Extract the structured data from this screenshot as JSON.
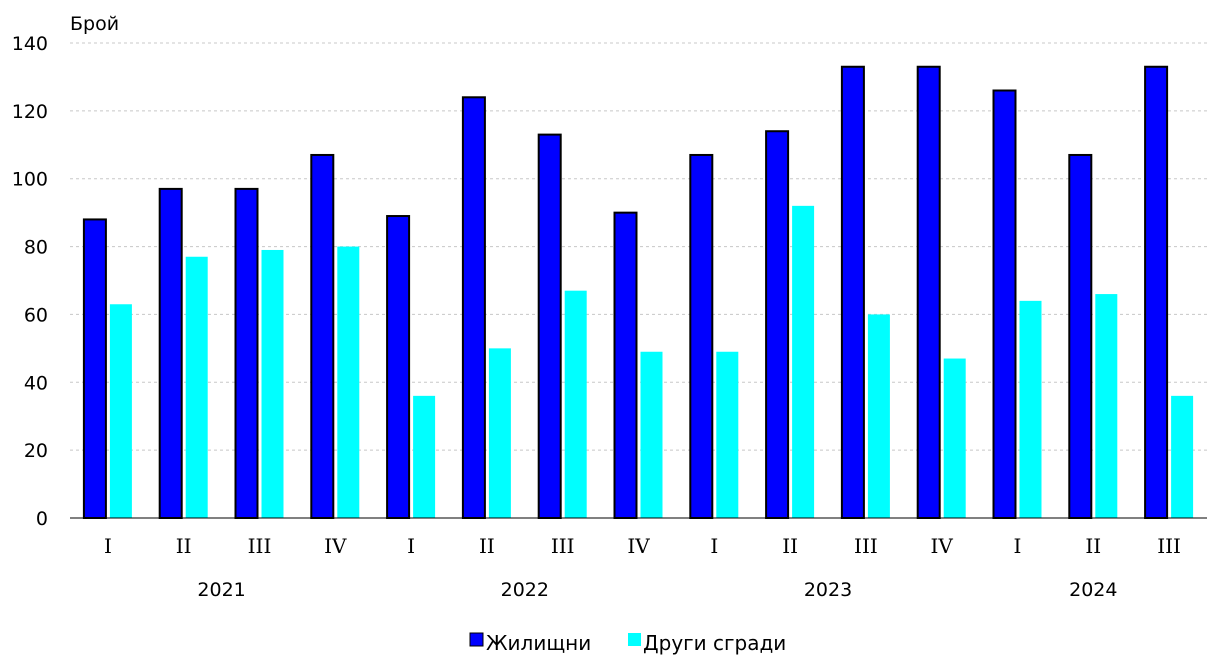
{
  "chart_data": {
    "type": "bar",
    "ylabel": "Брой",
    "ylim": [
      0,
      140
    ],
    "yticks": [
      "0",
      "20",
      "40",
      "60",
      "80",
      "100",
      "120",
      "140"
    ],
    "grid": true,
    "legend_position": "bottom",
    "categories": [
      "I",
      "II",
      "III",
      "IV",
      "I",
      "II",
      "III",
      "IV",
      "I",
      "II",
      "III",
      "IV",
      "I",
      "II",
      "III"
    ],
    "years": [
      {
        "label": "2021",
        "quarters": 4
      },
      {
        "label": "2022",
        "quarters": 4
      },
      {
        "label": "2023",
        "quarters": 4
      },
      {
        "label": "2024",
        "quarters": 3
      }
    ],
    "series": [
      {
        "name": "Жилищни",
        "color": "#0000ff",
        "values": [
          88,
          97,
          97,
          107,
          89,
          124,
          113,
          90,
          107,
          114,
          133,
          133,
          126,
          107,
          133
        ]
      },
      {
        "name": "Други сгради",
        "color": "#00ffff",
        "values": [
          63,
          77,
          79,
          80,
          36,
          50,
          67,
          49,
          49,
          92,
          60,
          47,
          64,
          66,
          36
        ]
      }
    ]
  }
}
